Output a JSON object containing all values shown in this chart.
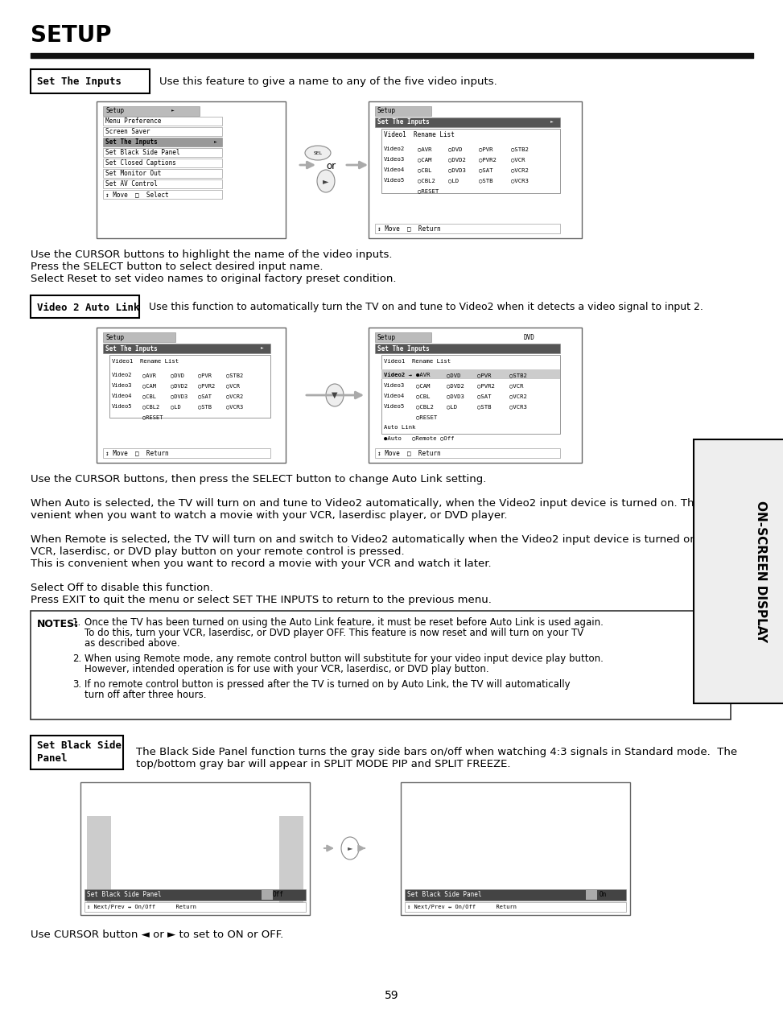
{
  "title": "SETUP",
  "page_number": "59",
  "bg": "#ffffff",
  "section1_label": "Set The Inputs",
  "section1_desc": "Use this feature to give a name to any of the five video inputs.",
  "section1_body": [
    "Use the CURSOR buttons to highlight the name of the video inputs.",
    "Press the SELECT button to select desired input name.",
    "Select Reset to set video names to original factory preset condition."
  ],
  "section2_label": "Video 2 Auto Link",
  "section2_desc": "Use this function to automatically turn the TV on and tune to Video2 when it detects a video signal to input 2.",
  "section2_body_lines": [
    [
      "Use the CURSOR buttons, then press the SELECT button to change Auto Link setting.",
      false
    ],
    [
      "",
      false
    ],
    [
      "When Auto is selected, the TV will turn on and tune to Video2 automatically, when the Video2 input device is turned on. This is con-",
      false
    ],
    [
      "venient when you want to watch a movie with your VCR, laserdisc player, or DVD player.",
      false
    ],
    [
      "",
      false
    ],
    [
      "When Remote is selected, the TV will turn on and switch to Video2 automatically when the Video2 input device is turned on and the",
      false
    ],
    [
      "VCR, laserdisc, or DVD play button on your remote control is pressed.",
      false
    ],
    [
      "This is convenient when you want to record a movie with your VCR and watch it later.",
      false
    ],
    [
      "",
      false
    ],
    [
      "Select Off to disable this function.",
      false
    ],
    [
      "Press EXIT to quit the menu or select SET THE INPUTS to return to the previous menu.",
      false
    ]
  ],
  "notes": [
    "Once the TV has been turned on using the Auto Link feature, it must be reset before Auto Link is used again. To do this, turn your VCR, laserdisc, or DVD player OFF. This feature is now reset and will turn on your TV as described above.",
    "When using Remote mode, any remote control button will substitute for your video input device play button. However, intended operation is for use with your VCR, laserdisc, or DVD play button.",
    "If no remote control button is pressed after the TV is turned on by Auto Link, the TV will automatically turn off after three hours."
  ],
  "section3_label_line1": "Set Black Side",
  "section3_label_line2": "Panel",
  "section3_desc": "The Black Side Panel function turns the gray side bars on/off when watching 4:3 signals in Standard mode.  The top/bottom gray bar will appear in SPLIT MODE PIP and SPLIT FREEZE.",
  "sidebar_text": "ON-SCREEN DISPLAY",
  "menu_items_s1": [
    "Menu Preference",
    "Screen Saver",
    "Set The Inputs",
    "Set Black Side Panel",
    "Set Closed Captions",
    "Set Monitor Out",
    "Set AV Control"
  ],
  "rename_rows": [
    [
      "Video2",
      "AVR",
      "DVD",
      "PVR",
      "STB2"
    ],
    [
      "Video3",
      "CAM",
      "DVD2",
      "PVR2",
      "VCR"
    ],
    [
      "Video4",
      "CBL",
      "DVD3",
      "SAT",
      "VCR2"
    ],
    [
      "Video5",
      "CBL2",
      "LD",
      "STB",
      "VCR3"
    ]
  ]
}
